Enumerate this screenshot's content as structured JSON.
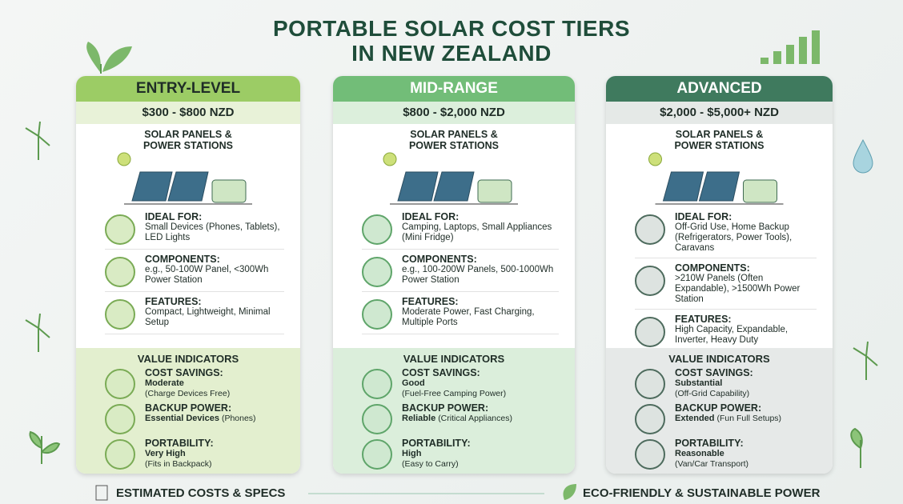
{
  "header": {
    "title_lines": [
      "PORTABLE SOLAR COST TIERS",
      "IN NEW ZEALAND"
    ]
  },
  "tiers": [
    {
      "name": "ENTRY-LEVEL",
      "price": "$300 - $800 NZD",
      "product": "SOLAR PANELS & POWER STATIONS",
      "sections": [
        {
          "label": "IDEAL FOR:",
          "text": "Small Devices (Phones, Tablets), LED Lights"
        },
        {
          "label": "COMPONENTS:",
          "text": "e.g., 50-100W Panel, <300Wh Power Station"
        },
        {
          "label": "FEATURES:",
          "text": "Compact, Lightweight, Minimal Setup"
        }
      ],
      "value_heading": "VALUE INDICATORS",
      "indicators": [
        {
          "label": "COST SAVINGS:",
          "level": "Moderate",
          "note": "(Charge Devices Free)"
        },
        {
          "label": "BACKUP POWER:",
          "level": "Essential Devices",
          "note": "(Phones)"
        },
        {
          "label": "PORTABILITY:",
          "level": "Very High",
          "note": "(Fits in Backpack)"
        }
      ]
    },
    {
      "name": "MID-RANGE",
      "price": "$800 - $2,000 NZD",
      "product": "SOLAR PANELS & POWER STATIONS",
      "sections": [
        {
          "label": "IDEAL FOR:",
          "text": "Camping, Laptops, Small Appliances (Mini Fridge)"
        },
        {
          "label": "COMPONENTS:",
          "text": "e.g., 100-200W Panels, 500-1000Wh Power Station"
        },
        {
          "label": "FEATURES:",
          "text": "Moderate Power, Fast Charging, Multiple Ports"
        }
      ],
      "value_heading": "VALUE INDICATORS",
      "indicators": [
        {
          "label": "COST SAVINGS:",
          "level": "Good",
          "note": "(Fuel-Free Camping Power)"
        },
        {
          "label": "BACKUP POWER:",
          "level": "Reliable",
          "note": "(Critical Appliances)"
        },
        {
          "label": "PORTABILITY:",
          "level": "High",
          "note": "(Easy to Carry)"
        }
      ]
    },
    {
      "name": "ADVANCED",
      "price": "$2,000 - $5,000+ NZD",
      "product": "SOLAR PANELS & POWER STATIONS",
      "sections": [
        {
          "label": "IDEAL FOR:",
          "text": "Off-Grid Use, Home Backup (Refrigerators, Power Tools), Caravans"
        },
        {
          "label": "COMPONENTS:",
          "text": ">210W Panels (Often Expandable), >1500Wh Power Station"
        },
        {
          "label": "FEATURES:",
          "text": "High Capacity, Expandable, Inverter, Heavy Duty"
        }
      ],
      "value_heading": "VALUE INDICATORS",
      "indicators": [
        {
          "label": "COST SAVINGS:",
          "level": "Substantial",
          "note": "(Off-Grid Capability)"
        },
        {
          "label": "BACKUP POWER:",
          "level": "Extended",
          "note": "(Fun Full Setups)"
        },
        {
          "label": "PORTABILITY:",
          "level": "Reasonable",
          "note": "(Van/Car Transport)"
        }
      ]
    }
  ],
  "footer": {
    "left": "ESTIMATED COSTS & SPECS",
    "right": "ECO-FRIENDLY & SUSTAINABLE POWER"
  }
}
